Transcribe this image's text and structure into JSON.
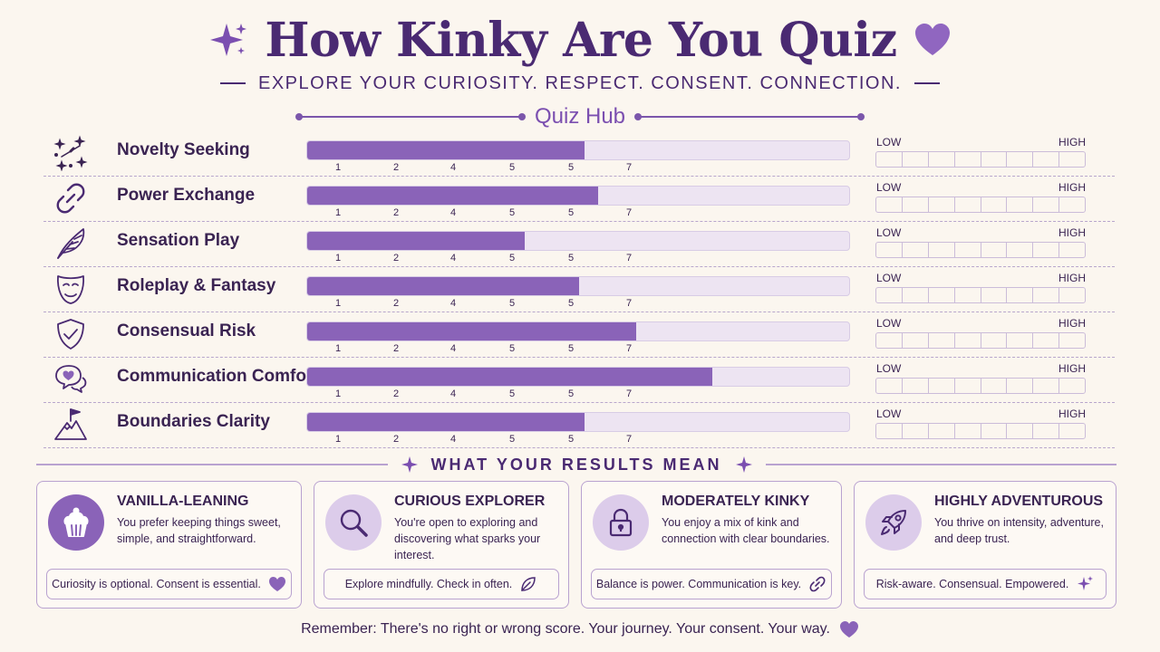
{
  "header": {
    "title": "How Kinky Are You Quiz",
    "subtitle": "EXPLORE YOUR CURIOSITY. RESPECT. CONSENT. CONNECTION.",
    "hub_title": "Quiz Hub"
  },
  "scale_labels": {
    "low": "LOW",
    "high": "HIGH"
  },
  "tick_labels": [
    "1",
    "2",
    "4",
    "5",
    "5",
    "7"
  ],
  "dimensions": [
    {
      "label": "Novelty Seeking",
      "icon": "sparkles-icon",
      "fill_fraction": 0.51
    },
    {
      "label": "Power Exchange",
      "icon": "chain-link-icon",
      "fill_fraction": 0.535
    },
    {
      "label": "Sensation Play",
      "icon": "feather-icon",
      "fill_fraction": 0.4
    },
    {
      "label": "Roleplay & Fantasy",
      "icon": "mask-icon",
      "fill_fraction": 0.5
    },
    {
      "label": "Consensual Risk",
      "icon": "shield-check-icon",
      "fill_fraction": 0.605
    },
    {
      "label": "Communication Comfort",
      "icon": "chat-heart-icon",
      "fill_fraction": 0.745
    },
    {
      "label": "Boundaries Clarity",
      "icon": "mountain-flag-icon",
      "fill_fraction": 0.51
    }
  ],
  "results": {
    "section_title": "WHAT YOUR RESULTS MEAN",
    "cards": [
      {
        "title": "VANILLA-LEANING",
        "description": "You prefer keeping things sweet, simple, and straightforward.",
        "footer": "Curiosity is optional. Consent is essential.",
        "icon": "cupcake-icon",
        "footer_icon": "heart-icon"
      },
      {
        "title": "CURIOUS EXPLORER",
        "description": "You're open to exploring and discovering what sparks your interest.",
        "footer": "Explore mindfully. Check in often.",
        "icon": "magnifier-icon",
        "footer_icon": "leaf-icon"
      },
      {
        "title": "MODERATELY KINKY",
        "description": "You enjoy a mix of kink and connection with clear boundaries.",
        "footer": "Balance is power. Communication is key.",
        "icon": "padlock-icon",
        "footer_icon": "link-icon"
      },
      {
        "title": "HIGHLY ADVENTUROUS",
        "description": "You thrive on intensity, adventure, and deep trust.",
        "footer": "Risk-aware. Consensual. Empowered.",
        "icon": "rocket-icon",
        "footer_icon": "sparkle-icon"
      }
    ]
  },
  "footer_text": "Remember: There's no right or wrong score. Your journey. Your consent. Your way.",
  "colors": {
    "accent": "#8a63b8",
    "dark": "#4a2a72",
    "track": "#ede4f2",
    "background": "#fbf6ef"
  }
}
